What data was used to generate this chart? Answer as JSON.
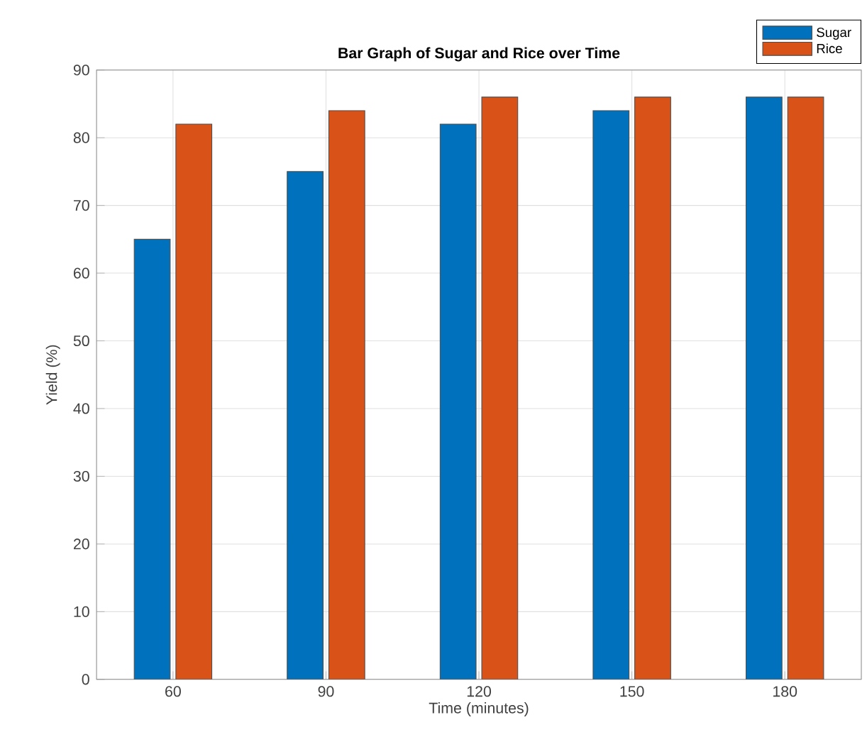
{
  "chart_data": {
    "type": "bar",
    "title": "Bar Graph of Sugar and Rice over Time",
    "xlabel": "Time (minutes)",
    "ylabel": "Yield (%)",
    "categories": [
      "60",
      "90",
      "120",
      "150",
      "180"
    ],
    "series": [
      {
        "name": "Sugar",
        "color": "#0072bd",
        "values": [
          65,
          75,
          82,
          84,
          86
        ]
      },
      {
        "name": "Rice",
        "color": "#d95319",
        "values": [
          82,
          84,
          86,
          86,
          86
        ]
      }
    ],
    "ylim": [
      0,
      90
    ],
    "yticks": [
      0,
      10,
      20,
      30,
      40,
      50,
      60,
      70,
      80,
      90
    ],
    "grid": true,
    "legend": "top right"
  }
}
